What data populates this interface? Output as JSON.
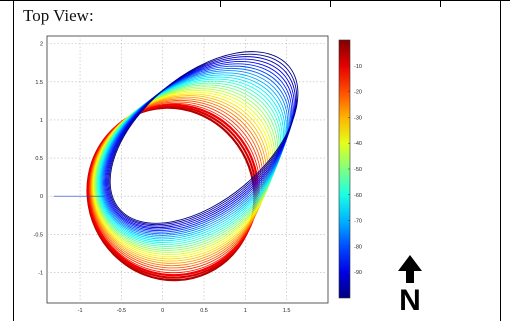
{
  "title": "Top View:",
  "north_label": "N",
  "chart_data": {
    "type": "line",
    "title": "",
    "xlabel": "",
    "ylabel": "",
    "xlim": [
      -1.4,
      2.0
    ],
    "ylim": [
      -1.4,
      2.1
    ],
    "x_ticks": [
      -1,
      -0.5,
      0,
      0.5,
      1,
      1.5
    ],
    "y_ticks": [
      -1,
      -0.5,
      0,
      0.5,
      1,
      1.5,
      2
    ],
    "grid": true,
    "colormap": "jet",
    "colorbar": {
      "range": [
        -100,
        0
      ],
      "ticks": [
        -10,
        -20,
        -30,
        -40,
        -50,
        -60,
        -70,
        -80,
        -90
      ]
    },
    "rings": {
      "count": 30,
      "outer_depth": -100,
      "inner_depth": -5,
      "center_start": [
        0.1,
        0.03
      ],
      "center_end": [
        0.5,
        0.77
      ],
      "radius_x": [
        1.0,
        1.34
      ],
      "radius_y": [
        1.14,
        0.82
      ],
      "tilt_deg": [
        -25,
        -40
      ]
    }
  }
}
